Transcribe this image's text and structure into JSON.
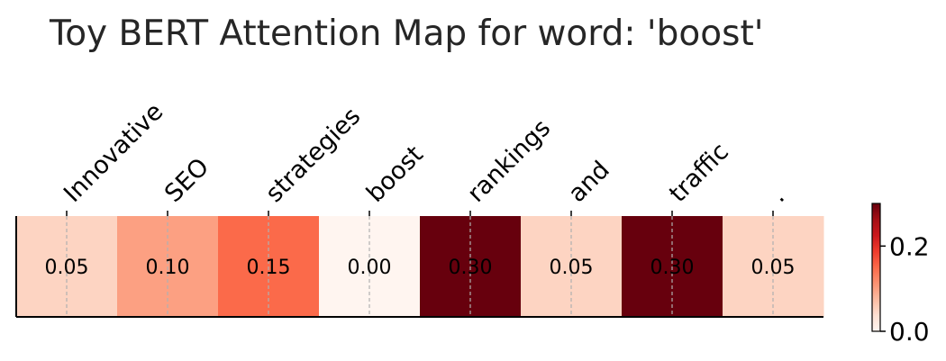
{
  "chart_data": {
    "type": "heatmap",
    "title": "Toy BERT Attention Map for word: 'boost'",
    "categories": [
      "Innovative",
      "SEO",
      "strategies",
      "boost",
      "rankings",
      "and",
      "traffic",
      "."
    ],
    "values": [
      0.05,
      0.1,
      0.15,
      0.0,
      0.3,
      0.05,
      0.3,
      0.05
    ],
    "value_labels": [
      "0.05",
      "0.10",
      "0.15",
      "0.00",
      "0.30",
      "0.05",
      "0.30",
      "0.05"
    ],
    "colormap": "Reds",
    "vlim": [
      0.0,
      0.3
    ],
    "colorbar": {
      "ticks": [
        0.0,
        0.2
      ],
      "tick_labels": [
        "0.0",
        "0.2"
      ]
    },
    "grid": true,
    "xtick_rotation_deg": 45
  }
}
